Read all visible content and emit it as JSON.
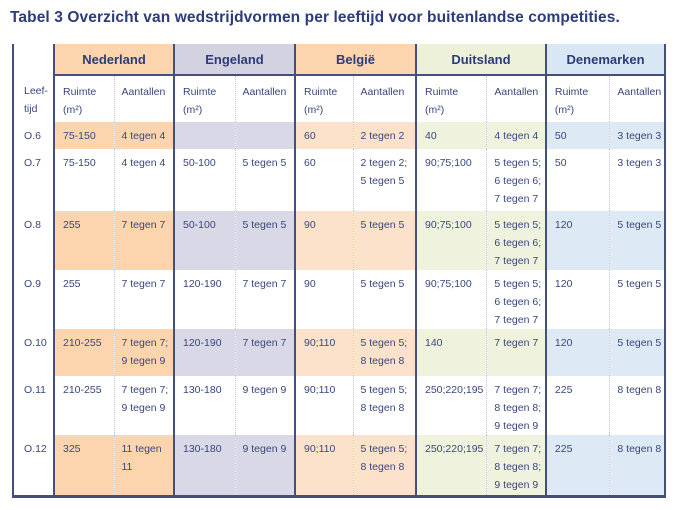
{
  "title": "Tabel 3 Overzicht van wedstrijdvormen per leeftijd voor buitenlandse competities.",
  "table": {
    "age_header": "Leef-\ntijd",
    "countries": [
      {
        "key": "nederland",
        "label": "Nederland",
        "header_color": "#fcd5af",
        "row_color": "#fcd5af",
        "ruimte_header": "Ruimte\n(m²)",
        "aantallen_header": "Aantallen"
      },
      {
        "key": "engeland",
        "label": "Engeland",
        "header_color": "#d3d2e1",
        "row_color": "#d9d8e6",
        "ruimte_header": "Ruimte\n(m²)",
        "aantallen_header": "Aantallen"
      },
      {
        "key": "belgie",
        "label": "België",
        "header_color": "#fcd5af",
        "row_color": "#fde2cb",
        "ruimte_header": "Ruimte\n(m²)",
        "aantallen_header": "Aantallen"
      },
      {
        "key": "duitsland",
        "label": "Duitsland",
        "header_color": "#edf1da",
        "row_color": "#eff3de",
        "ruimte_header": "Ruimte\n(m²)",
        "aantallen_header": "Aantallen"
      },
      {
        "key": "denemarken",
        "label": "Denemarken",
        "header_color": "#d8e7f3",
        "row_color": "#ddeaf5",
        "ruimte_header": "Ruimte (m²)",
        "aantallen_header": "Aantallen"
      }
    ],
    "rows": [
      {
        "age": "O.6",
        "cells": {
          "nederland": {
            "ruimte": "75-150",
            "aantallen": "4 tegen 4"
          },
          "engeland": {
            "ruimte": "",
            "aantallen": ""
          },
          "belgie": {
            "ruimte": "60",
            "aantallen": "2 tegen 2"
          },
          "duitsland": {
            "ruimte": "40",
            "aantallen": "4 tegen 4"
          },
          "denemarken": {
            "ruimte": "50",
            "aantallen": "3 tegen 3"
          }
        }
      },
      {
        "age": "O.7",
        "cells": {
          "nederland": {
            "ruimte": "75-150",
            "aantallen": "4 tegen 4"
          },
          "engeland": {
            "ruimte": "50-100",
            "aantallen": "5 tegen 5"
          },
          "belgie": {
            "ruimte": "60",
            "aantallen": "2 tegen 2;\n5 tegen 5"
          },
          "duitsland": {
            "ruimte": "90;75;100",
            "aantallen": "5 tegen 5;\n6 tegen 6;\n7 tegen 7"
          },
          "denemarken": {
            "ruimte": "50",
            "aantallen": "3 tegen 3"
          }
        }
      },
      {
        "age": "O.8",
        "cells": {
          "nederland": {
            "ruimte": "255",
            "aantallen": "7 tegen 7"
          },
          "engeland": {
            "ruimte": "50-100",
            "aantallen": "5 tegen 5"
          },
          "belgie": {
            "ruimte": "90",
            "aantallen": "5 tegen 5"
          },
          "duitsland": {
            "ruimte": "90;75;100",
            "aantallen": "5 tegen 5;\n6 tegen 6;\n7 tegen 7"
          },
          "denemarken": {
            "ruimte": "120",
            "aantallen": "5 tegen 5"
          }
        }
      },
      {
        "age": "O.9",
        "cells": {
          "nederland": {
            "ruimte": "255",
            "aantallen": "7 tegen 7"
          },
          "engeland": {
            "ruimte": "120-190",
            "aantallen": "7 tegen 7"
          },
          "belgie": {
            "ruimte": "90",
            "aantallen": "5 tegen 5"
          },
          "duitsland": {
            "ruimte": "90;75;100",
            "aantallen": "5 tegen 5;\n6 tegen 6;\n7 tegen 7"
          },
          "denemarken": {
            "ruimte": "120",
            "aantallen": "5 tegen 5"
          }
        }
      },
      {
        "age": "O.10",
        "cells": {
          "nederland": {
            "ruimte": "210-255",
            "aantallen": "7 tegen 7;\n9 tegen 9"
          },
          "engeland": {
            "ruimte": "120-190",
            "aantallen": "7 tegen 7"
          },
          "belgie": {
            "ruimte": "90;110",
            "aantallen": "5 tegen 5;\n8 tegen 8"
          },
          "duitsland": {
            "ruimte": "140",
            "aantallen": "7 tegen 7"
          },
          "denemarken": {
            "ruimte": "120",
            "aantallen": "5 tegen 5"
          }
        }
      },
      {
        "age": "O.11",
        "cells": {
          "nederland": {
            "ruimte": "210-255",
            "aantallen": "7 tegen 7;\n9 tegen 9"
          },
          "engeland": {
            "ruimte": "130-180",
            "aantallen": "9 tegen 9"
          },
          "belgie": {
            "ruimte": "90;110",
            "aantallen": "5 tegen 5;\n8 tegen 8"
          },
          "duitsland": {
            "ruimte": "250;220;195",
            "aantallen": "7 tegen 7;\n8 tegen 8;\n9 tegen 9"
          },
          "denemarken": {
            "ruimte": "225",
            "aantallen": "8 tegen 8"
          }
        }
      },
      {
        "age": "O.12",
        "cells": {
          "nederland": {
            "ruimte": "325",
            "aantallen": "11 tegen 11"
          },
          "engeland": {
            "ruimte": "130-180",
            "aantallen": "9 tegen 9"
          },
          "belgie": {
            "ruimte": "90;110",
            "aantallen": "5 tegen 5;\n8 tegen 8"
          },
          "duitsland": {
            "ruimte": "250;220;195",
            "aantallen": "7 tegen 7;\n8 tegen 8;\n9 tegen 9"
          },
          "denemarken": {
            "ruimte": "225",
            "aantallen": "8 tegen 8"
          }
        }
      }
    ]
  }
}
